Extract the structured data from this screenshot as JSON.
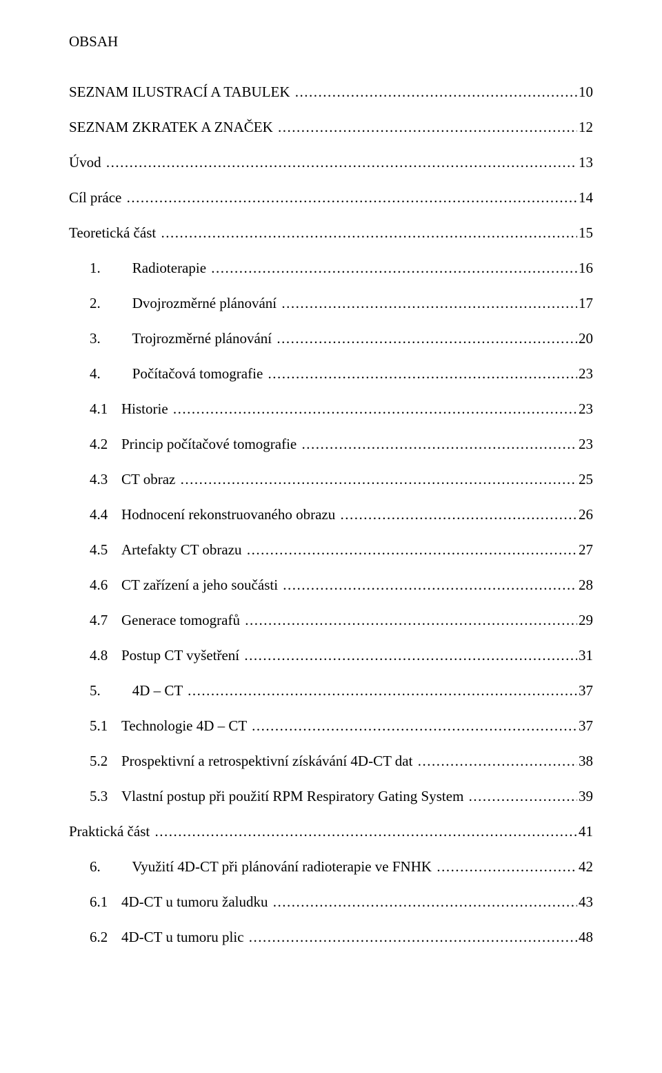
{
  "title": "OBSAH",
  "entries": [
    {
      "level": 0,
      "num": "",
      "label": "SEZNAM ILUSTRACÍ A TABULEK",
      "page": "10"
    },
    {
      "level": 0,
      "num": "",
      "label": "SEZNAM ZKRATEK A ZNAČEK",
      "page": "12"
    },
    {
      "level": 0,
      "num": "",
      "label": "Úvod",
      "page": "13"
    },
    {
      "level": 0,
      "num": "",
      "label": "Cíl práce",
      "page": "14"
    },
    {
      "level": 0,
      "num": "",
      "label": "Teoretická část",
      "page": "15"
    },
    {
      "level": 1,
      "num": "1.",
      "label": "Radioterapie",
      "page": "16"
    },
    {
      "level": 1,
      "num": "2.",
      "label": "Dvojrozměrné plánování",
      "page": "17"
    },
    {
      "level": 1,
      "num": "3.",
      "label": "Trojrozměrné plánování",
      "page": "20"
    },
    {
      "level": 1,
      "num": "4.",
      "label": "Počítačová tomografie",
      "page": "23"
    },
    {
      "level": 2,
      "num": "4.1",
      "label": "Historie",
      "page": "23"
    },
    {
      "level": 2,
      "num": "4.2",
      "label": "Princip počítačové tomografie",
      "page": "23"
    },
    {
      "level": 2,
      "num": "4.3",
      "label": "CT obraz",
      "page": "25"
    },
    {
      "level": 2,
      "num": "4.4",
      "label": "Hodnocení rekonstruovaného obrazu",
      "page": "26"
    },
    {
      "level": 2,
      "num": "4.5",
      "label": "Artefakty CT obrazu",
      "page": "27"
    },
    {
      "level": 2,
      "num": "4.6",
      "label": "CT zařízení a jeho součásti",
      "page": "28"
    },
    {
      "level": 2,
      "num": "4.7",
      "label": "Generace tomografů",
      "page": "29"
    },
    {
      "level": 2,
      "num": "4.8",
      "label": "Postup CT vyšetření",
      "page": "31"
    },
    {
      "level": 1,
      "num": "5.",
      "label": "4D – CT",
      "page": "37"
    },
    {
      "level": 2,
      "num": "5.1",
      "label": "Technologie 4D – CT",
      "page": "37"
    },
    {
      "level": 2,
      "num": "5.2",
      "label": "Prospektivní a retrospektivní získávání 4D-CT dat",
      "page": "38"
    },
    {
      "level": 2,
      "num": "5.3",
      "label": "Vlastní postup při použití RPM Respiratory Gating System",
      "page": "39"
    },
    {
      "level": 0,
      "num": "",
      "label": "Praktická část",
      "page": "41"
    },
    {
      "level": 1,
      "num": "6.",
      "label": "Využití 4D-CT při plánování radioterapie ve FNHK",
      "page": "42"
    },
    {
      "level": 2,
      "num": "6.1",
      "label": "4D-CT u tumoru žaludku",
      "page": "43"
    },
    {
      "level": 2,
      "num": "6.2",
      "label": "4D-CT u tumoru plic",
      "page": "48"
    }
  ]
}
